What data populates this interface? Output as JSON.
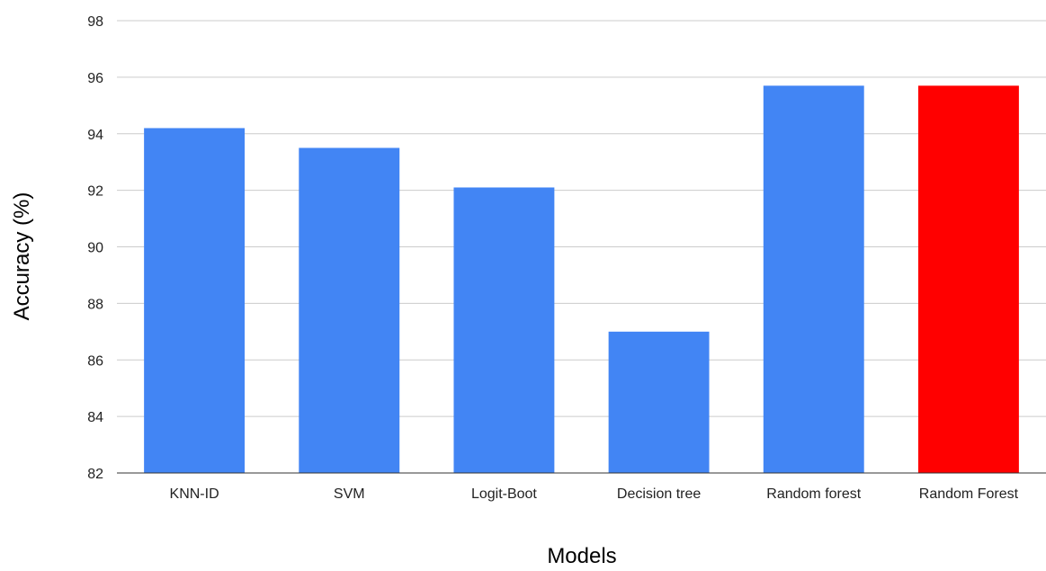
{
  "chart_data": {
    "type": "bar",
    "title": "",
    "xlabel": "Models",
    "ylabel": "Accuracy (%)",
    "categories": [
      "KNN-ID",
      "SVM",
      "Logit-Boot",
      "Decision tree",
      "Random forest",
      "Random Forest"
    ],
    "values": [
      94.2,
      93.5,
      92.1,
      87.0,
      95.7,
      95.7
    ],
    "colors": [
      "#4285f4",
      "#4285f4",
      "#4285f4",
      "#4285f4",
      "#4285f4",
      "#ff0000"
    ],
    "ylim": [
      82,
      98
    ],
    "yticks": [
      82,
      84,
      86,
      88,
      90,
      92,
      94,
      96,
      98
    ],
    "grid": true,
    "legend": "none"
  }
}
